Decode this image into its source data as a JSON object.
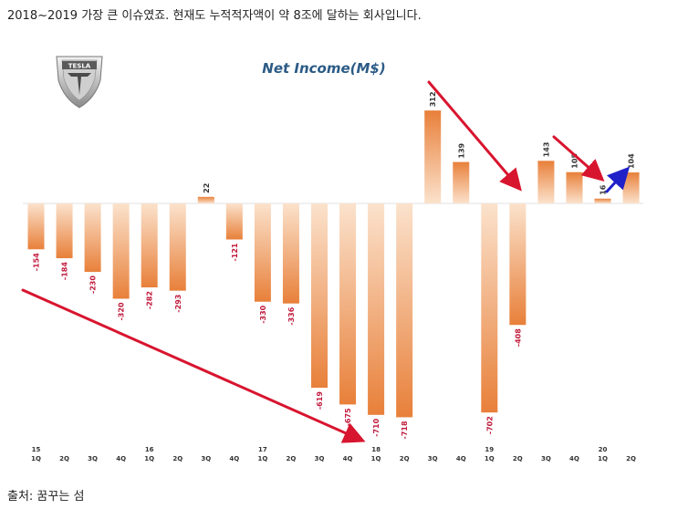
{
  "caption_top": "2018~2019 가장 큰 이슈였죠. 현재도 누적적자액이 약 8조에 달하는 회사입니다.",
  "caption_bottom": "출처: 꿈꾸는 섬",
  "logo_text": "TESLA",
  "colors": {
    "bar_light": "#fbe2cc",
    "bar_dark": "#e8803a",
    "neg_label": "#c0183a",
    "pos_label": "#333333",
    "arrow_red": "#d8152f",
    "arrow_blue": "#2020c8"
  },
  "chart_data": {
    "type": "bar",
    "title": "Net Income(M$)",
    "categories": [
      {
        "year": "15",
        "q": "1Q"
      },
      {
        "year": "",
        "q": "2Q"
      },
      {
        "year": "",
        "q": "3Q"
      },
      {
        "year": "",
        "q": "4Q"
      },
      {
        "year": "16",
        "q": "1Q"
      },
      {
        "year": "",
        "q": "2Q"
      },
      {
        "year": "",
        "q": "3Q"
      },
      {
        "year": "",
        "q": "4Q"
      },
      {
        "year": "17",
        "q": "1Q"
      },
      {
        "year": "",
        "q": "2Q"
      },
      {
        "year": "",
        "q": "3Q"
      },
      {
        "year": "",
        "q": "4Q"
      },
      {
        "year": "18",
        "q": "1Q"
      },
      {
        "year": "",
        "q": "2Q"
      },
      {
        "year": "",
        "q": "3Q"
      },
      {
        "year": "",
        "q": "4Q"
      },
      {
        "year": "19",
        "q": "1Q"
      },
      {
        "year": "",
        "q": "2Q"
      },
      {
        "year": "",
        "q": "3Q"
      },
      {
        "year": "",
        "q": "4Q"
      },
      {
        "year": "20",
        "q": "1Q"
      },
      {
        "year": "",
        "q": "2Q"
      }
    ],
    "values": [
      -154,
      -184,
      -230,
      -320,
      -282,
      -293,
      22,
      -121,
      -330,
      -336,
      -619,
      -675,
      -710,
      -718,
      312,
      139,
      -702,
      -408,
      143,
      105,
      16,
      104
    ],
    "ylim": [
      -760,
      420
    ],
    "arrows": [
      {
        "color": "red",
        "from": 0,
        "to": 12
      },
      {
        "color": "red",
        "from": 15,
        "to": 17
      },
      {
        "color": "red",
        "from": 18,
        "to": 20
      },
      {
        "color": "blue",
        "from": 20,
        "to": 21
      }
    ]
  }
}
